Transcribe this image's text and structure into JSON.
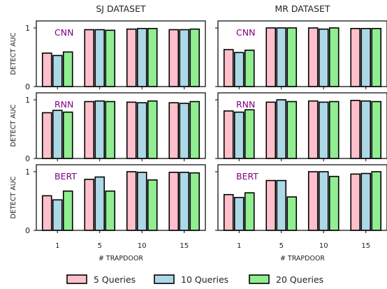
{
  "chart_data": {
    "type": "bar",
    "column_titles": [
      "SJ DATASET",
      "MR DATASET"
    ],
    "row_labels": [
      "CNN",
      "RNN",
      "BERT"
    ],
    "categories": [
      "1",
      "5",
      "10",
      "15"
    ],
    "xlabel": "# TRAPDOOR",
    "ylabel": "DETECT AUC",
    "ylim": [
      0,
      1
    ],
    "yticks": [
      "0",
      "1"
    ],
    "legend_position": "bottom",
    "legend": [
      "5 Queries",
      "10 Queries",
      "20 Queries"
    ],
    "colors": [
      "#ffc0cb",
      "#add8e6",
      "#90ee90"
    ],
    "panels": [
      {
        "row": "CNN",
        "col": "SJ DATASET",
        "series": [
          {
            "name": "5 Queries",
            "values": [
              0.57,
              0.97,
              0.98,
              0.97
            ]
          },
          {
            "name": "10 Queries",
            "values": [
              0.53,
              0.97,
              0.99,
              0.97
            ]
          },
          {
            "name": "20 Queries",
            "values": [
              0.59,
              0.96,
              0.99,
              0.98
            ]
          }
        ]
      },
      {
        "row": "CNN",
        "col": "MR DATASET",
        "series": [
          {
            "name": "5 Queries",
            "values": [
              0.63,
              1.0,
              1.0,
              0.99
            ]
          },
          {
            "name": "10 Queries",
            "values": [
              0.58,
              1.0,
              0.98,
              0.99
            ]
          },
          {
            "name": "20 Queries",
            "values": [
              0.62,
              1.0,
              1.0,
              0.99
            ]
          }
        ]
      },
      {
        "row": "RNN",
        "col": "SJ DATASET",
        "series": [
          {
            "name": "5 Queries",
            "values": [
              0.78,
              0.97,
              0.96,
              0.95
            ]
          },
          {
            "name": "10 Queries",
            "values": [
              0.82,
              0.98,
              0.95,
              0.94
            ]
          },
          {
            "name": "20 Queries",
            "values": [
              0.79,
              0.97,
              0.98,
              0.97
            ]
          }
        ]
      },
      {
        "row": "RNN",
        "col": "MR DATASET",
        "series": [
          {
            "name": "5 Queries",
            "values": [
              0.81,
              0.96,
              0.98,
              0.99
            ]
          },
          {
            "name": "10 Queries",
            "values": [
              0.79,
              1.0,
              0.96,
              0.98
            ]
          },
          {
            "name": "20 Queries",
            "values": [
              0.83,
              0.97,
              0.97,
              0.97
            ]
          }
        ]
      },
      {
        "row": "BERT",
        "col": "SJ DATASET",
        "series": [
          {
            "name": "5 Queries",
            "values": [
              0.59,
              0.87,
              1.0,
              0.99
            ]
          },
          {
            "name": "10 Queries",
            "values": [
              0.52,
              0.91,
              0.99,
              0.99
            ]
          },
          {
            "name": "20 Queries",
            "values": [
              0.67,
              0.67,
              0.86,
              0.98
            ]
          }
        ]
      },
      {
        "row": "BERT",
        "col": "MR DATASET",
        "series": [
          {
            "name": "5 Queries",
            "values": [
              0.61,
              0.85,
              1.0,
              0.96
            ]
          },
          {
            "name": "10 Queries",
            "values": [
              0.56,
              0.85,
              1.0,
              0.97
            ]
          },
          {
            "name": "20 Queries",
            "values": [
              0.64,
              0.57,
              0.92,
              1.0
            ]
          }
        ]
      }
    ]
  }
}
